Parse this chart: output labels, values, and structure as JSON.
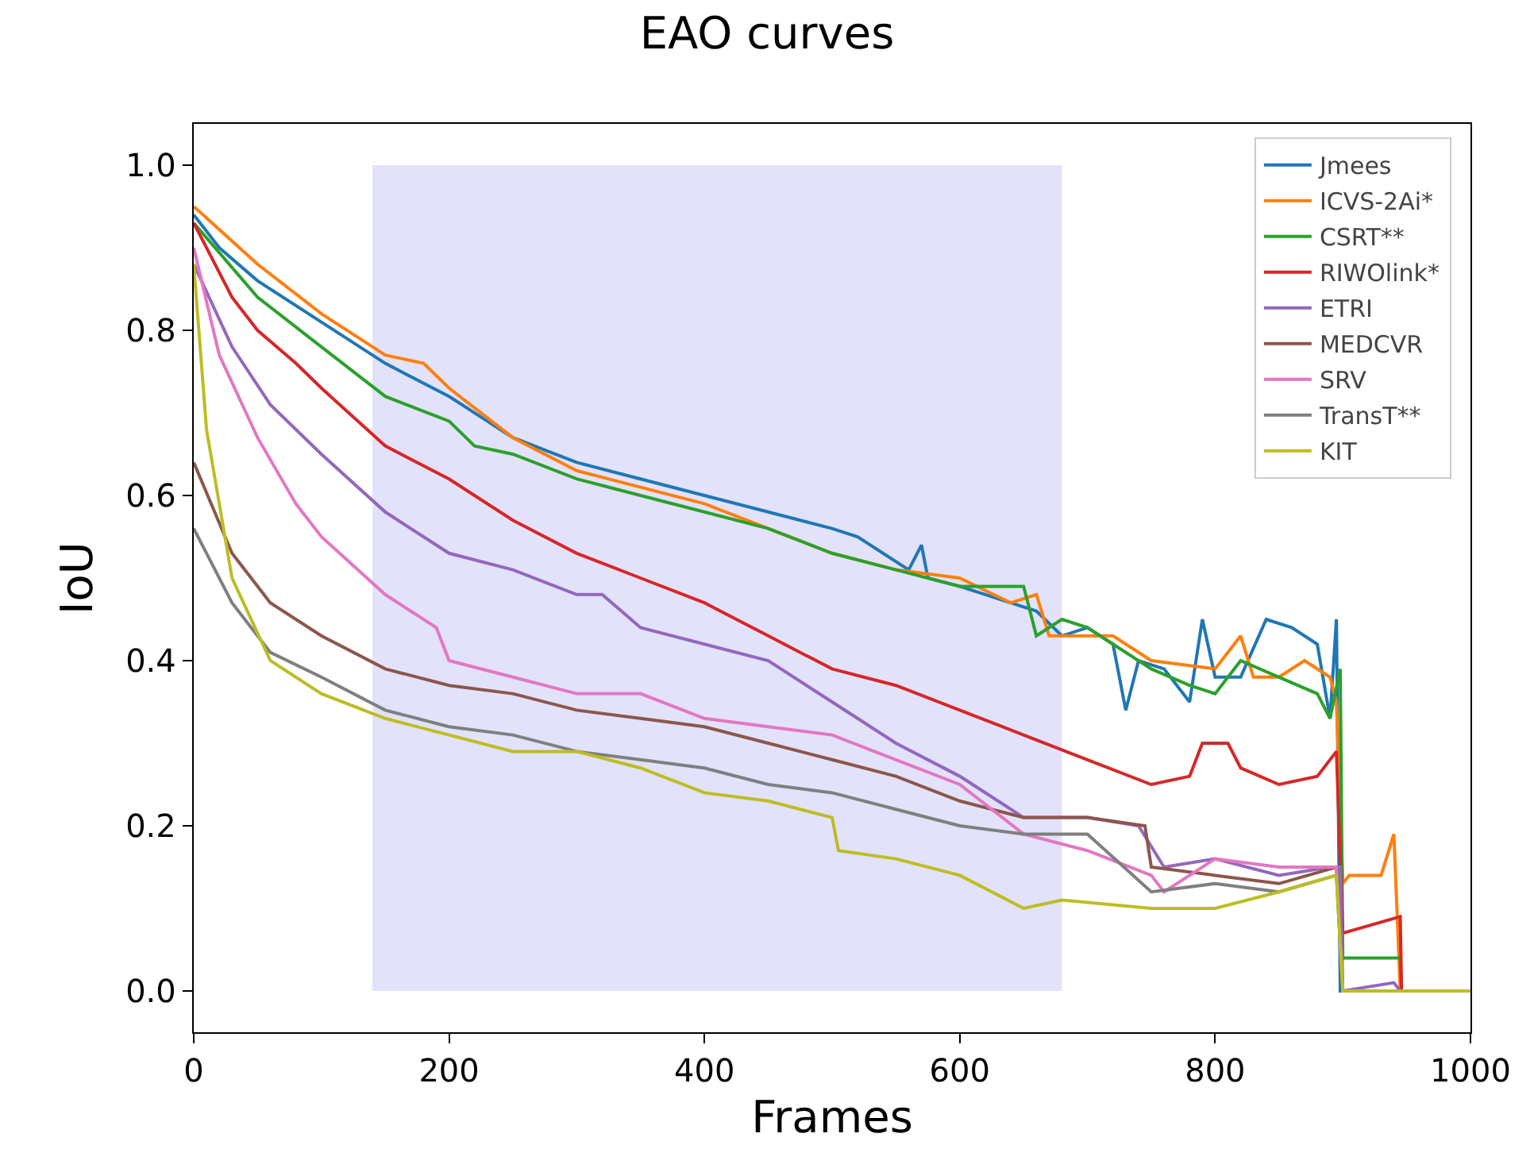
{
  "chart_data": {
    "type": "line",
    "title": "EAO curves",
    "xlabel": "Frames",
    "ylabel": "IoU",
    "xlim": [
      0,
      1000
    ],
    "xticks": [
      0,
      200,
      400,
      600,
      800,
      1000
    ],
    "ylim": [
      -0.05,
      1.05
    ],
    "yticks": [
      {
        "value": 0,
        "label": "0.0"
      },
      0.2,
      0.4,
      0.6,
      0.8,
      {
        "value": 1,
        "label": "1.0"
      }
    ],
    "grid": false,
    "legend": "top right",
    "line_style": "solid",
    "marker": "none",
    "bands": [
      {
        "axis": "x",
        "from": 140,
        "to": 680,
        "color": "#e2e2fb"
      }
    ],
    "series": [
      {
        "name": "Jmees",
        "color": "#1f77b4",
        "x": [
          0,
          20,
          50,
          100,
          150,
          200,
          250,
          300,
          350,
          400,
          450,
          500,
          520,
          560,
          570,
          575,
          600,
          640,
          660,
          680,
          700,
          720,
          730,
          740,
          760,
          780,
          790,
          800,
          820,
          840,
          860,
          880,
          890,
          895,
          898,
          1000
        ],
        "values": [
          0.94,
          0.9,
          0.86,
          0.81,
          0.76,
          0.72,
          0.67,
          0.64,
          0.62,
          0.6,
          0.58,
          0.56,
          0.55,
          0.51,
          0.54,
          0.5,
          0.49,
          0.47,
          0.46,
          0.43,
          0.44,
          0.42,
          0.34,
          0.4,
          0.39,
          0.35,
          0.45,
          0.38,
          0.38,
          0.45,
          0.44,
          0.42,
          0.33,
          0.45,
          0,
          0
        ]
      },
      {
        "name": "ICVS-2Ai*",
        "color": "#ff7f0e",
        "x": [
          0,
          50,
          100,
          150,
          180,
          200,
          250,
          300,
          350,
          400,
          450,
          500,
          550,
          600,
          640,
          660,
          670,
          690,
          720,
          750,
          800,
          820,
          830,
          850,
          870,
          890,
          895,
          900,
          905,
          930,
          940,
          945,
          1000
        ],
        "values": [
          0.95,
          0.88,
          0.82,
          0.77,
          0.76,
          0.73,
          0.67,
          0.63,
          0.61,
          0.59,
          0.56,
          0.53,
          0.51,
          0.5,
          0.47,
          0.48,
          0.43,
          0.43,
          0.43,
          0.4,
          0.39,
          0.43,
          0.38,
          0.38,
          0.4,
          0.38,
          0.35,
          0.13,
          0.14,
          0.14,
          0.19,
          0,
          0
        ]
      },
      {
        "name": "CSRT**",
        "color": "#2ca02c",
        "x": [
          0,
          50,
          100,
          150,
          200,
          220,
          250,
          300,
          350,
          400,
          450,
          500,
          550,
          600,
          650,
          660,
          680,
          700,
          720,
          750,
          780,
          800,
          820,
          850,
          880,
          890,
          898,
          900,
          945,
          946,
          1000
        ],
        "values": [
          0.93,
          0.84,
          0.78,
          0.72,
          0.69,
          0.66,
          0.65,
          0.62,
          0.6,
          0.58,
          0.56,
          0.53,
          0.51,
          0.49,
          0.49,
          0.43,
          0.45,
          0.44,
          0.42,
          0.39,
          0.37,
          0.36,
          0.4,
          0.38,
          0.36,
          0.33,
          0.39,
          0.04,
          0.04,
          0,
          0
        ]
      },
      {
        "name": "RIWOlink*",
        "color": "#d62728",
        "x": [
          0,
          30,
          50,
          80,
          100,
          150,
          200,
          250,
          300,
          350,
          400,
          450,
          500,
          550,
          600,
          650,
          700,
          750,
          780,
          790,
          810,
          820,
          850,
          880,
          895,
          900,
          945,
          946,
          1000
        ],
        "values": [
          0.93,
          0.84,
          0.8,
          0.76,
          0.73,
          0.66,
          0.62,
          0.57,
          0.53,
          0.5,
          0.47,
          0.43,
          0.39,
          0.37,
          0.34,
          0.31,
          0.28,
          0.25,
          0.26,
          0.3,
          0.3,
          0.27,
          0.25,
          0.26,
          0.29,
          0.07,
          0.09,
          0,
          0
        ]
      },
      {
        "name": "ETRI",
        "color": "#9467bd",
        "x": [
          0,
          30,
          60,
          100,
          150,
          200,
          250,
          300,
          320,
          350,
          400,
          450,
          500,
          550,
          600,
          650,
          700,
          740,
          760,
          800,
          850,
          890,
          898,
          900,
          940,
          945,
          1000
        ],
        "values": [
          0.88,
          0.78,
          0.71,
          0.65,
          0.58,
          0.53,
          0.51,
          0.48,
          0.48,
          0.44,
          0.42,
          0.4,
          0.35,
          0.3,
          0.26,
          0.21,
          0.21,
          0.2,
          0.15,
          0.16,
          0.14,
          0.15,
          0.15,
          0,
          0.01,
          0,
          0
        ]
      },
      {
        "name": "MEDCVR",
        "color": "#8c564b",
        "x": [
          0,
          30,
          60,
          100,
          150,
          200,
          250,
          300,
          350,
          400,
          450,
          500,
          550,
          600,
          650,
          700,
          745,
          750,
          800,
          850,
          895,
          900,
          1000
        ],
        "values": [
          0.64,
          0.53,
          0.47,
          0.43,
          0.39,
          0.37,
          0.36,
          0.34,
          0.33,
          0.32,
          0.3,
          0.28,
          0.26,
          0.23,
          0.21,
          0.21,
          0.2,
          0.15,
          0.14,
          0.13,
          0.15,
          0,
          0
        ]
      },
      {
        "name": "SRV",
        "color": "#e377c2",
        "x": [
          0,
          20,
          50,
          80,
          100,
          150,
          190,
          200,
          250,
          300,
          350,
          400,
          450,
          500,
          550,
          600,
          650,
          700,
          750,
          760,
          800,
          850,
          895,
          900,
          1000
        ],
        "values": [
          0.9,
          0.77,
          0.67,
          0.59,
          0.55,
          0.48,
          0.44,
          0.4,
          0.38,
          0.36,
          0.36,
          0.33,
          0.32,
          0.31,
          0.28,
          0.25,
          0.19,
          0.17,
          0.14,
          0.12,
          0.16,
          0.15,
          0.15,
          0,
          0
        ]
      },
      {
        "name": "TransT**",
        "color": "#7f7f7f",
        "x": [
          0,
          30,
          60,
          100,
          150,
          200,
          250,
          300,
          350,
          400,
          450,
          500,
          550,
          600,
          650,
          700,
          750,
          800,
          850,
          895,
          900,
          1000
        ],
        "values": [
          0.56,
          0.47,
          0.41,
          0.38,
          0.34,
          0.32,
          0.31,
          0.29,
          0.28,
          0.27,
          0.25,
          0.24,
          0.22,
          0.2,
          0.19,
          0.19,
          0.12,
          0.13,
          0.12,
          0.14,
          0,
          0
        ]
      },
      {
        "name": "KIT",
        "color": "#bcbd22",
        "x": [
          0,
          10,
          30,
          60,
          100,
          150,
          200,
          250,
          300,
          350,
          400,
          450,
          500,
          505,
          550,
          600,
          650,
          680,
          750,
          800,
          850,
          895,
          900,
          1000
        ],
        "values": [
          0.88,
          0.68,
          0.5,
          0.4,
          0.36,
          0.33,
          0.31,
          0.29,
          0.29,
          0.27,
          0.24,
          0.23,
          0.21,
          0.17,
          0.16,
          0.14,
          0.1,
          0.11,
          0.1,
          0.1,
          0.12,
          0.14,
          0,
          0
        ]
      }
    ]
  }
}
